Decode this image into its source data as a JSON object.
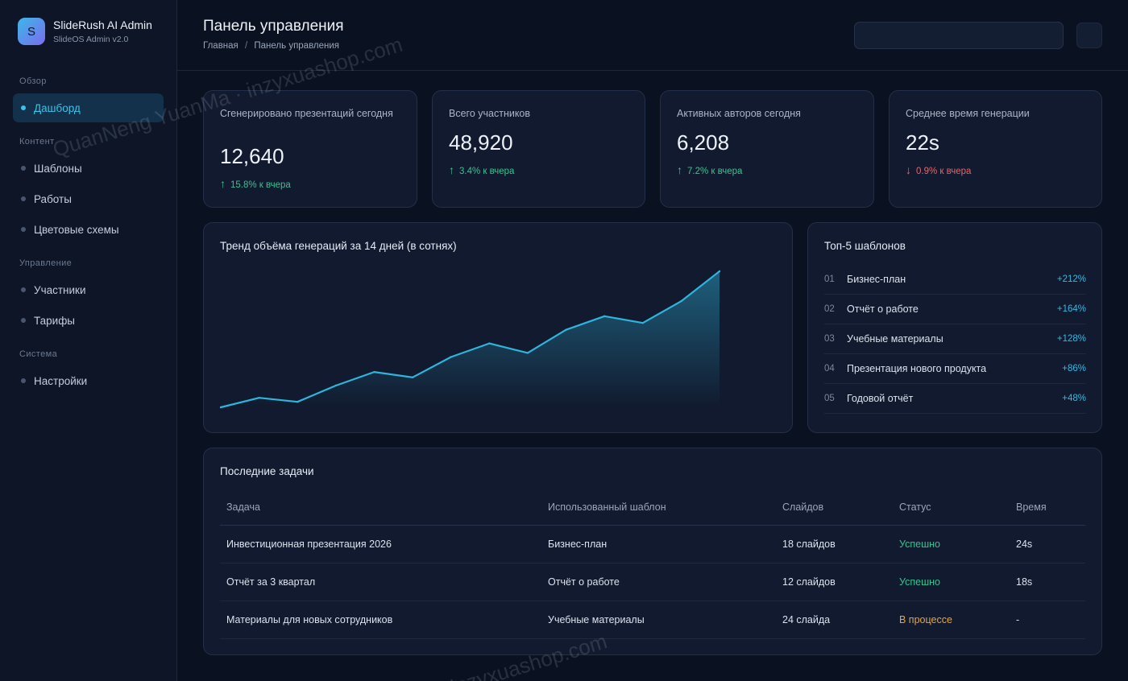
{
  "brand": {
    "logo_letter": "S",
    "title": "SlideRush AI Admin",
    "subtitle": "SlideOS Admin v2.0"
  },
  "sidebar": {
    "groups": [
      {
        "title": "Обзор",
        "items": [
          {
            "label": "Дашборд",
            "active": true
          }
        ]
      },
      {
        "title": "Контент",
        "items": [
          {
            "label": "Шаблоны"
          },
          {
            "label": "Работы"
          },
          {
            "label": "Цветовые схемы"
          }
        ]
      },
      {
        "title": "Управление",
        "items": [
          {
            "label": "Участники"
          },
          {
            "label": "Тарифы"
          }
        ]
      },
      {
        "title": "Система",
        "items": [
          {
            "label": "Настройки"
          }
        ]
      }
    ]
  },
  "header": {
    "title": "Панель управления",
    "breadcrumb": [
      "Главная",
      "Панель управления"
    ],
    "breadcrumb_sep": "/"
  },
  "stats": [
    {
      "label": "Сгенерировано презентаций сегодня",
      "value": "12,640",
      "delta": "15.8% к вчера",
      "trend": "up"
    },
    {
      "label": "Всего участников",
      "value": "48,920",
      "delta": "3.4% к вчера",
      "trend": "up"
    },
    {
      "label": "Активных авторов сегодня",
      "value": "6,208",
      "delta": "7.2% к вчера",
      "trend": "up"
    },
    {
      "label": "Среднее время генерации",
      "value": "22s",
      "delta": "0.9% к вчера",
      "trend": "down"
    }
  ],
  "chart_data": {
    "type": "area",
    "title": "Тренд объёма генераций за 14 дней (в сотнях)",
    "xlabel": "",
    "ylabel": "",
    "x": [
      1,
      2,
      3,
      4,
      5,
      6,
      7,
      8,
      9,
      10,
      11,
      12,
      13,
      14
    ],
    "series": [
      {
        "values": [
          0,
          7,
          4,
          16,
          26,
          22,
          37,
          47,
          40,
          57,
          67,
          62,
          78,
          100
        ]
      }
    ],
    "ylim": [
      0,
      100
    ],
    "grid": false,
    "line_color": "#2fb4dc"
  },
  "top_templates": {
    "title": "Топ-5 шаблонов",
    "items": [
      {
        "rank": "01",
        "name": "Бизнес-план",
        "delta": "+212%"
      },
      {
        "rank": "02",
        "name": "Отчёт о работе",
        "delta": "+164%"
      },
      {
        "rank": "03",
        "name": "Учебные материалы",
        "delta": "+128%"
      },
      {
        "rank": "04",
        "name": "Презентация нового продукта",
        "delta": "+86%"
      },
      {
        "rank": "05",
        "name": "Годовой отчёт",
        "delta": "+48%"
      }
    ]
  },
  "tasks": {
    "title": "Последние задачи",
    "columns": [
      "Задача",
      "Использованный шаблон",
      "Слайдов",
      "Статус",
      "Время"
    ],
    "rows": [
      {
        "task": "Инвестиционная презентация 2026",
        "template": "Бизнес-план",
        "slides": "18 слайдов",
        "status": "Успешно",
        "status_kind": "ok",
        "time": "24s"
      },
      {
        "task": "Отчёт за 3 квартал",
        "template": "Отчёт о работе",
        "slides": "12 слайдов",
        "status": "Успешно",
        "status_kind": "ok",
        "time": "18s"
      },
      {
        "task": "Материалы для новых сотрудников",
        "template": "Учебные материалы",
        "slides": "24 слайда",
        "status": "В процессе",
        "status_kind": "progress",
        "time": "-"
      }
    ]
  },
  "watermarks": [
    "QuanNeng YuanMa · inzyxuashop.com",
    "inzyxuashop.com"
  ],
  "colors": {
    "accent": "#3fc0e6",
    "up": "#36c48e",
    "down": "#e8646d",
    "progress": "#e3a648"
  }
}
